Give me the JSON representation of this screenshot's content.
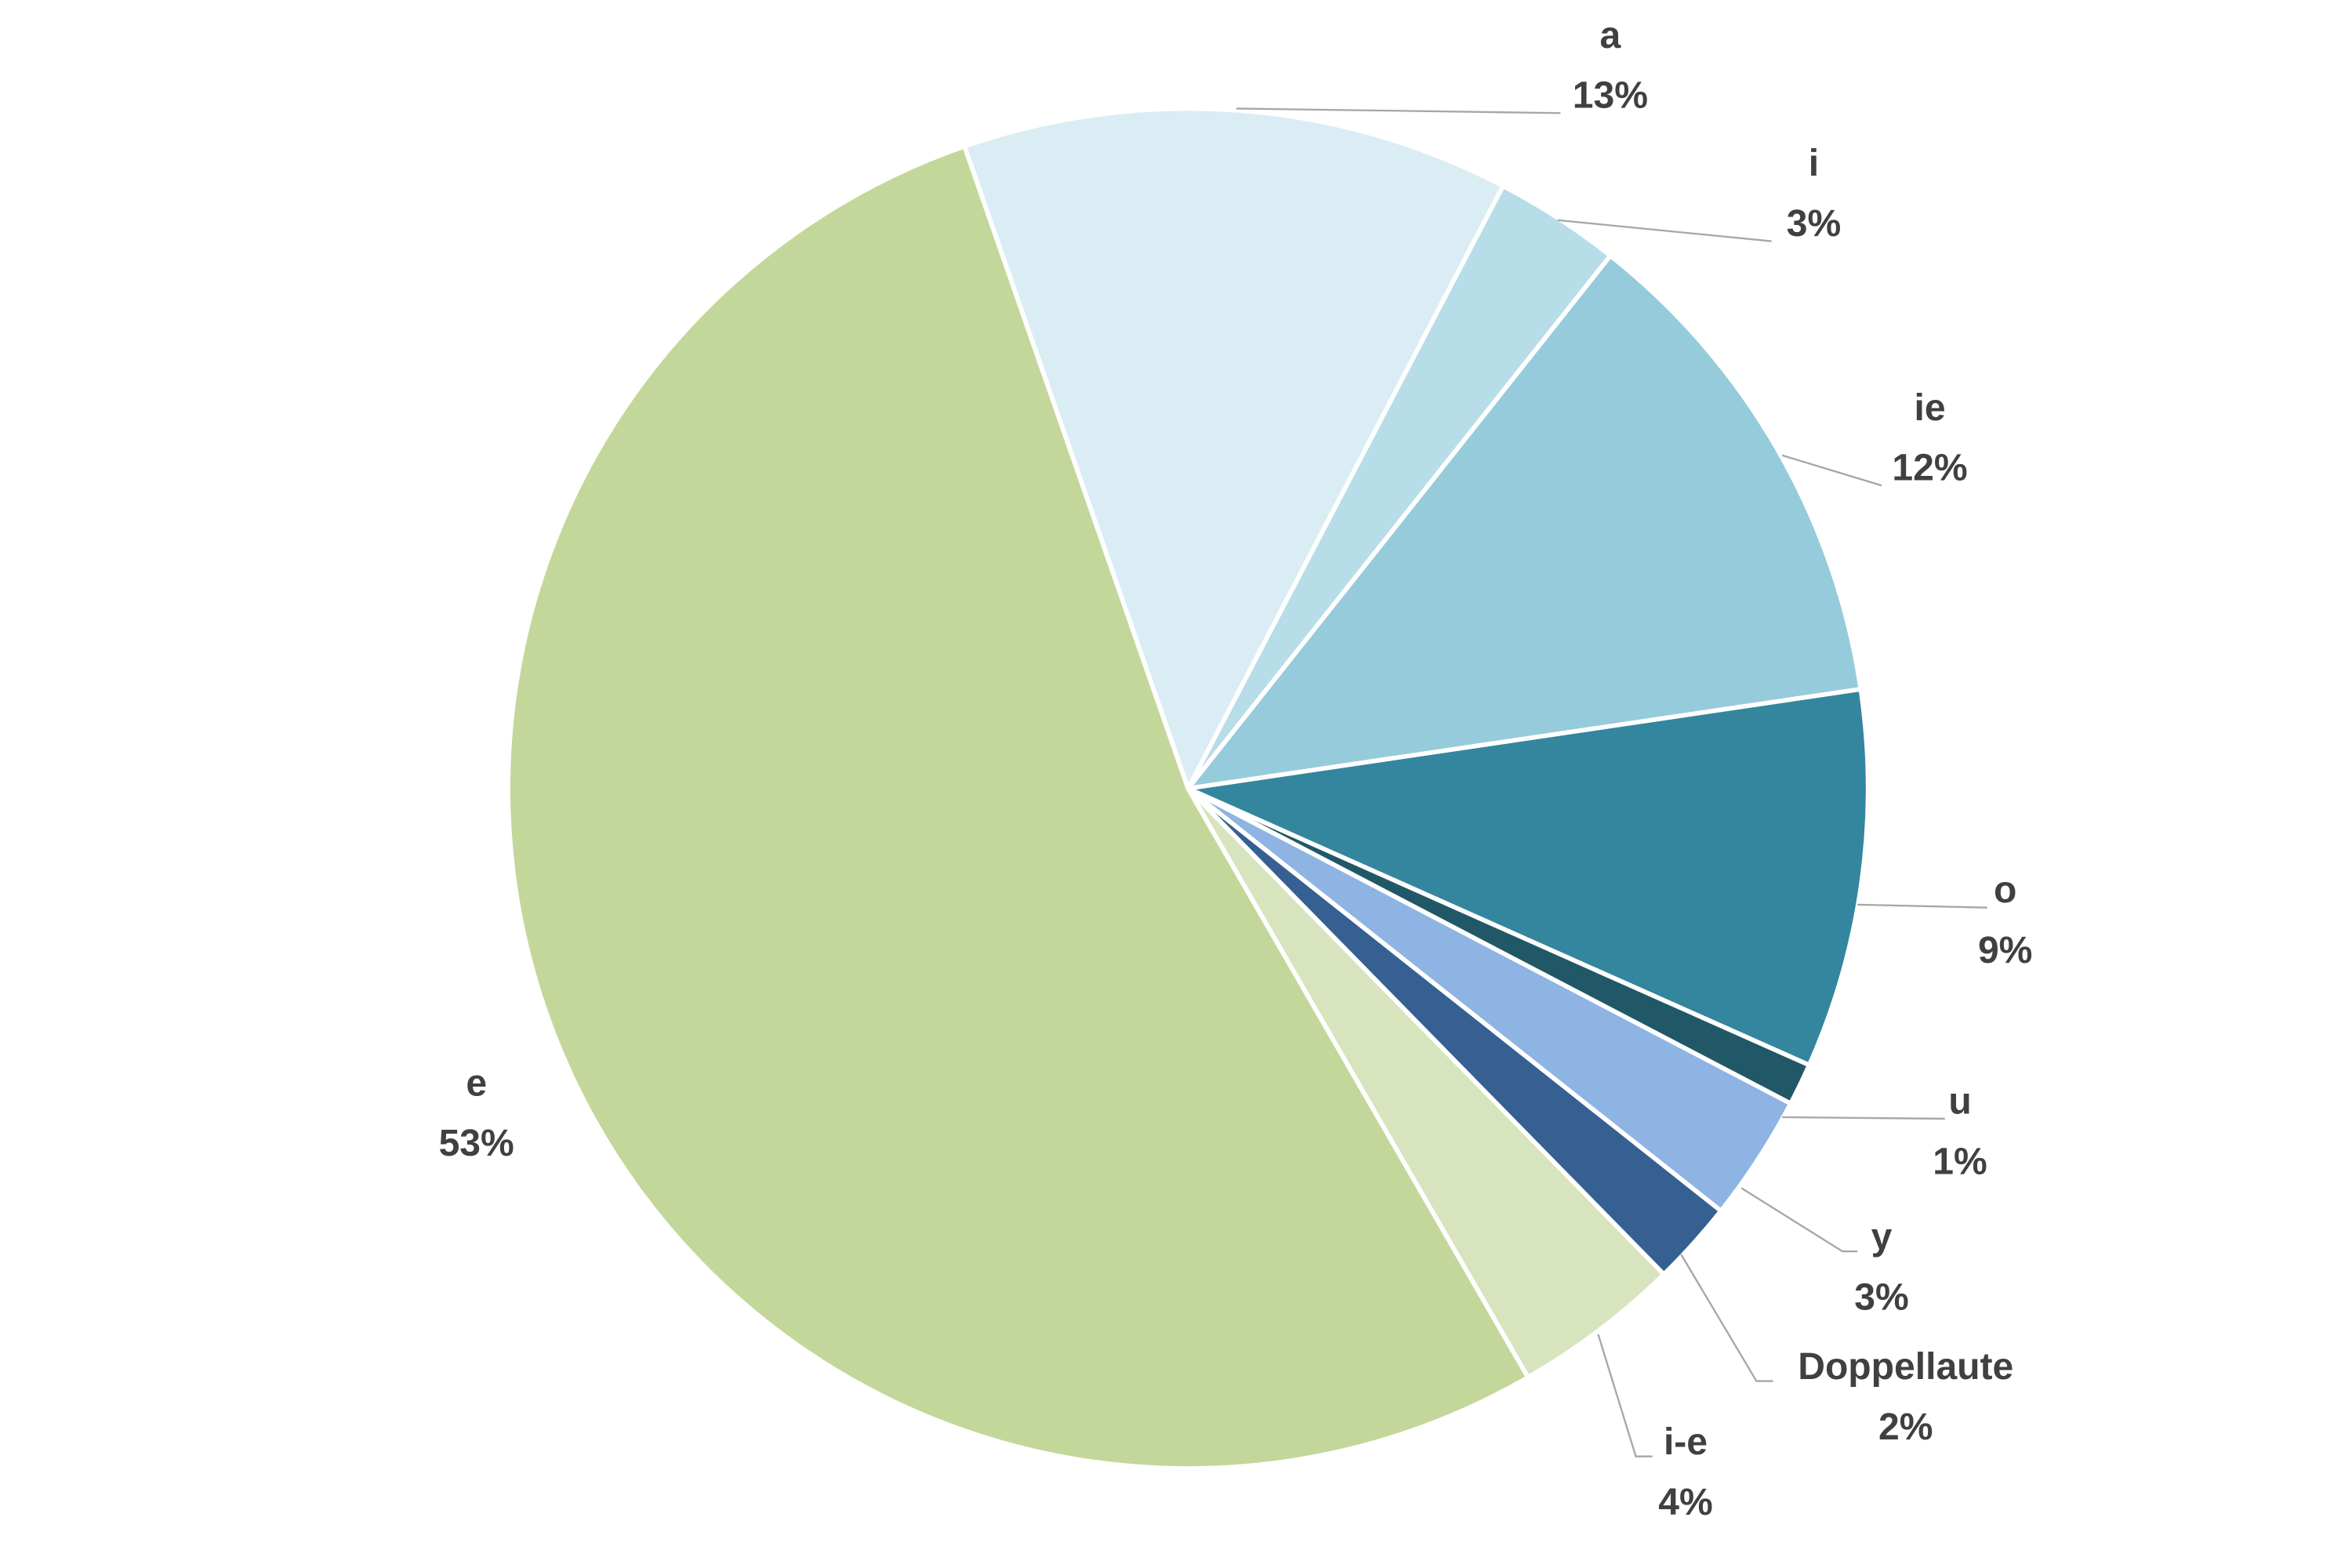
{
  "chart_data": {
    "type": "pie",
    "categories": [
      "a",
      "i",
      "ie",
      "o",
      "u",
      "y",
      "Doppellaute",
      "i-e",
      "e"
    ],
    "values": [
      13,
      3,
      12,
      9,
      1,
      3,
      2,
      4,
      53
    ],
    "value_labels": [
      "13%",
      "3%",
      "12%",
      "9%",
      "1%",
      "3%",
      "2%",
      "4%",
      "53%"
    ],
    "colors": [
      "#daedf4",
      "#b7dde8",
      "#96cbdc",
      "#33869d",
      "#215868",
      "#8eb4e3",
      "#366092",
      "#d7e4bd",
      "#c4d79b"
    ]
  }
}
